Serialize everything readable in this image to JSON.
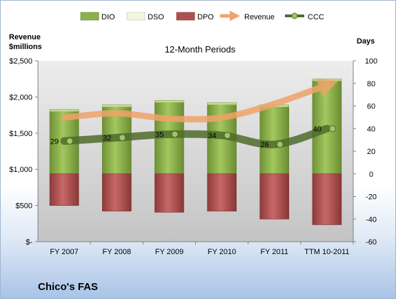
{
  "chart_data": {
    "type": "bar",
    "subtitle": "12-Month Periods",
    "company": "Chico's FAS",
    "y_left": {
      "label_line1": "Revenue",
      "label_line2": "$millions",
      "range": [
        0,
        2500
      ],
      "ticks": [
        "$-",
        "$500",
        "$1,000",
        "$1,500",
        "$2,000",
        "$2,500"
      ]
    },
    "y_right": {
      "label": "Days",
      "range": [
        -60,
        100
      ],
      "ticks": [
        "-60",
        "-40",
        "-20",
        "0",
        "20",
        "40",
        "60",
        "80",
        "100"
      ]
    },
    "categories": [
      "FY 2007",
      "FY 2008",
      "FY 2009",
      "FY 2010",
      "FY 2011",
      "TTM 10-2011"
    ],
    "legend": {
      "position": "top",
      "entries": [
        "DIO",
        "DSO",
        "DPO",
        "Revenue",
        "CCC"
      ]
    },
    "series": [
      {
        "name": "DIO",
        "axis": "right",
        "kind": "stacked-bar",
        "values": [
          57,
          61,
          65,
          63,
          61,
          84
        ]
      },
      {
        "name": "DSO",
        "axis": "right",
        "kind": "stacked-bar",
        "values": [
          0,
          0,
          0,
          0,
          0,
          0
        ]
      },
      {
        "name": "DPO",
        "axis": "right",
        "kind": "stacked-bar-negative",
        "values": [
          -28,
          -33,
          -34,
          -33,
          -40,
          -45
        ]
      },
      {
        "name": "Revenue",
        "axis": "left",
        "kind": "line",
        "values": [
          1715,
          1775,
          1700,
          1715,
          1905,
          2165
        ]
      },
      {
        "name": "CCC",
        "axis": "right",
        "kind": "line",
        "values": [
          29,
          32,
          35,
          34,
          26,
          40
        ]
      }
    ],
    "grid": false,
    "colors": {
      "DIO": "#8cb14b",
      "DSO": "#f2f7e3",
      "DPO": "#b04f4f",
      "Revenue": "#f0a36a",
      "CCC": "#4f6b2c",
      "plot_background": "#d4d4d4"
    }
  }
}
